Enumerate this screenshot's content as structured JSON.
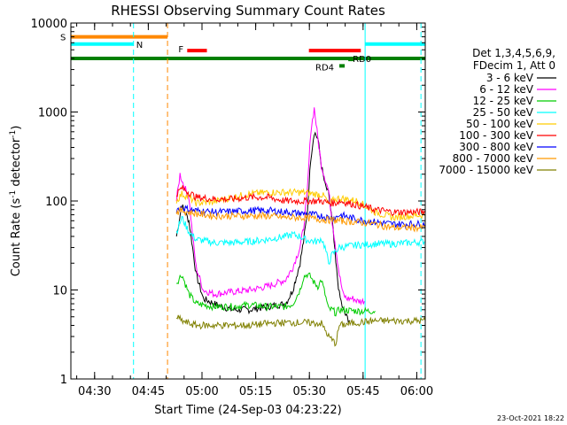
{
  "chart_data": {
    "type": "line",
    "title": "RHESSI Observing Summary Count Rates",
    "xlabel": "Start Time (24-Sep-03 04:23:22)",
    "ylabel_main": "Count Rate (s",
    "ylabel_sup1": "-1",
    "ylabel_mid": " detector",
    "ylabel_sup2": "-1",
    "ylabel_end": ")",
    "yscale": "log",
    "xlim_minutes": [
      0,
      99
    ],
    "ylim": [
      1,
      10000
    ],
    "x_ticks": [
      {
        "m": 6.63,
        "label": "04:30"
      },
      {
        "m": 21.63,
        "label": "04:45"
      },
      {
        "m": 36.63,
        "label": "05:00"
      },
      {
        "m": 51.63,
        "label": "05:15"
      },
      {
        "m": 66.63,
        "label": "05:30"
      },
      {
        "m": 81.63,
        "label": "05:45"
      },
      {
        "m": 96.63,
        "label": "06:00"
      }
    ],
    "y_ticks": [
      {
        "v": 1,
        "label": "1"
      },
      {
        "v": 10,
        "label": "10"
      },
      {
        "v": 100,
        "label": "100"
      },
      {
        "v": 1000,
        "label": "1000"
      },
      {
        "v": 10000,
        "label": "10000"
      }
    ],
    "legend_header": [
      "Det 1,3,4,5,6,9,",
      "FDecim 1, Att 0"
    ],
    "legend_position": "right",
    "series": [
      {
        "name": "3 - 6 keV",
        "color": "#000000",
        "x": [
          29.5,
          31,
          31.5,
          33,
          34,
          35,
          37,
          40,
          45,
          50,
          55,
          60,
          62,
          64,
          65,
          66,
          67,
          68,
          69,
          70,
          71,
          72,
          73,
          74,
          75,
          76,
          77,
          78
        ],
        "y": [
          40,
          90,
          80,
          60,
          30,
          15,
          8,
          7,
          6,
          6,
          6.5,
          7,
          10,
          20,
          35,
          70,
          300,
          600,
          500,
          250,
          150,
          120,
          60,
          20,
          9,
          6,
          5,
          4.5
        ]
      },
      {
        "name": "6 - 12 keV",
        "color": "#ff00ff",
        "x": [
          29.5,
          30.5,
          31.5,
          33,
          34,
          35,
          37,
          40,
          45,
          50,
          55,
          60,
          62,
          64,
          65,
          66,
          67,
          68,
          69,
          70,
          71,
          72,
          73,
          74,
          75,
          76,
          77,
          78,
          79,
          80,
          81,
          82
        ],
        "y": [
          100,
          200,
          150,
          110,
          40,
          18,
          10,
          9,
          9.5,
          10,
          11,
          13,
          18,
          30,
          50,
          120,
          600,
          1100,
          500,
          250,
          180,
          130,
          60,
          30,
          15,
          9,
          8,
          8,
          8,
          7.5,
          7.5,
          7.5
        ]
      },
      {
        "name": "12 - 25 keV",
        "color": "#00cc00",
        "x": [
          29.5,
          31,
          33,
          35,
          40,
          45,
          50,
          55,
          60,
          62,
          64,
          65,
          66,
          67,
          68,
          69,
          70,
          71,
          72,
          73,
          74,
          75,
          80,
          85
        ],
        "y": [
          12,
          15,
          9,
          7,
          6.5,
          6.5,
          6.8,
          6.5,
          6.5,
          7,
          10,
          14,
          15,
          14,
          12,
          11,
          13,
          9,
          6,
          6,
          5.5,
          6,
          5.8,
          5.8
        ]
      },
      {
        "name": "25 - 50 keV",
        "color": "#00ffff",
        "x": [
          29.5,
          31,
          33,
          35,
          40,
          45,
          50,
          55,
          60,
          62,
          64,
          65,
          66,
          67,
          68,
          69,
          70,
          71,
          72,
          73,
          75,
          80,
          85,
          90,
          95,
          99
        ],
        "y": [
          45,
          65,
          45,
          37,
          34,
          34,
          35,
          37,
          40,
          42,
          40,
          38,
          36,
          36,
          35,
          35,
          38,
          30,
          20,
          25,
          30,
          32,
          33,
          33,
          34,
          35
        ]
      },
      {
        "name": "50 - 100 keV",
        "color": "#ffcc00",
        "x": [
          29.5,
          31,
          33,
          35,
          40,
          45,
          50,
          55,
          60,
          65,
          68,
          70,
          71,
          72,
          73,
          74,
          75,
          80,
          85,
          90,
          95,
          99
        ],
        "y": [
          100,
          120,
          110,
          95,
          98,
          110,
          120,
          125,
          125,
          125,
          120,
          118,
          110,
          90,
          100,
          105,
          108,
          100,
          75,
          65,
          68,
          70
        ]
      },
      {
        "name": "100 - 300 keV",
        "color": "#ff0000",
        "x": [
          29.5,
          31,
          33,
          35,
          40,
          45,
          50,
          55,
          60,
          65,
          68,
          70,
          72,
          74,
          75,
          80,
          85,
          90,
          95,
          99
        ],
        "y": [
          120,
          140,
          125,
          110,
          105,
          105,
          110,
          110,
          100,
          100,
          100,
          100,
          95,
          95,
          100,
          90,
          80,
          75,
          75,
          75
        ]
      },
      {
        "name": "300 - 800 keV",
        "color": "#0000ff",
        "x": [
          29.5,
          31,
          33,
          35,
          40,
          45,
          50,
          55,
          60,
          65,
          68,
          70,
          72,
          74,
          75,
          80,
          85,
          90,
          95,
          99
        ],
        "y": [
          80,
          85,
          80,
          78,
          75,
          76,
          78,
          78,
          75,
          72,
          70,
          68,
          65,
          65,
          70,
          62,
          58,
          55,
          55,
          55
        ]
      },
      {
        "name": "800 - 7000 keV",
        "color": "#ff9900",
        "x": [
          29.5,
          31,
          33,
          35,
          40,
          45,
          50,
          55,
          60,
          65,
          70,
          75,
          80,
          85,
          90,
          95,
          99
        ],
        "y": [
          75,
          78,
          75,
          72,
          68,
          68,
          68,
          68,
          65,
          65,
          62,
          60,
          58,
          55,
          50,
          50,
          50
        ]
      },
      {
        "name": "7000 - 15000 keV",
        "color": "#808000",
        "x": [
          29.5,
          31,
          33,
          35,
          40,
          45,
          50,
          55,
          60,
          65,
          70,
          72,
          74,
          75,
          80,
          85,
          90,
          95,
          99
        ],
        "y": [
          5,
          4.5,
          4.2,
          4,
          4,
          4,
          4,
          4.2,
          4.3,
          4.3,
          4.2,
          3,
          2.5,
          4,
          4.3,
          4.5,
          4.5,
          4.5,
          4.5
        ]
      }
    ],
    "flags": [
      {
        "label": "S",
        "color": "#ff8800",
        "y": 7000,
        "segments": [
          [
            0,
            27
          ]
        ]
      },
      {
        "label": "N",
        "color": "#00ffff",
        "y": 5800,
        "segments": [
          [
            0,
            17.5
          ],
          [
            82.2,
            99
          ]
        ]
      },
      {
        "label": "F",
        "color": "#ff0000",
        "y": 4900,
        "segments": [
          [
            32.5,
            38
          ],
          [
            66.5,
            81
          ]
        ]
      },
      {
        "label": "",
        "color": "#008000",
        "y": 4000,
        "segments": [
          [
            0,
            99
          ]
        ]
      },
      {
        "label": "RD0",
        "color": "#008000",
        "y": 3900,
        "segments": [
          [
            77.5,
            79
          ]
        ]
      },
      {
        "label": "RD4",
        "color": "#008000",
        "y": 3300,
        "segments": [
          [
            75,
            76.5
          ]
        ]
      }
    ],
    "vlines": [
      {
        "m": 17.5,
        "color": "#00ffff",
        "dash": true
      },
      {
        "m": 27,
        "color": "#ff8800",
        "dash": true
      },
      {
        "m": 82.2,
        "color": "#00ffff",
        "dash": false
      },
      {
        "m": 97.8,
        "color": "#00ffff",
        "dash": true
      }
    ],
    "timestamp": "23-Oct-2021 18:22"
  }
}
